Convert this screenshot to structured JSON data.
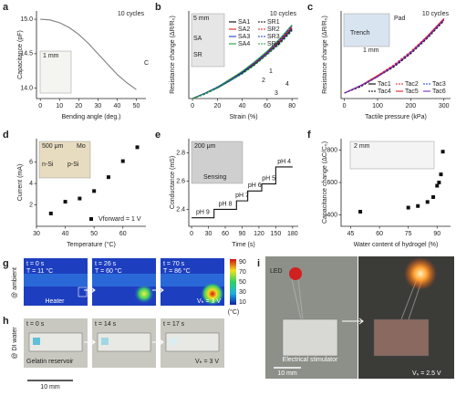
{
  "chart_data": [
    {
      "label": "a",
      "type": "line",
      "annotation": "10 cycles",
      "xlabel": "Bending angle (deg.)",
      "ylabel": "Capacitance (pF)",
      "x": [
        0,
        5,
        10,
        15,
        20,
        25,
        30,
        35,
        40,
        45,
        50
      ],
      "series": [
        {
          "color": "#7f7f7f",
          "values": [
            15.0,
            14.99,
            14.95,
            14.88,
            14.78,
            14.65,
            14.5,
            14.35,
            14.2,
            14.08,
            13.98
          ]
        }
      ],
      "xlim": [
        -2,
        55
      ],
      "ylim": [
        13.85,
        15.12
      ],
      "xticks": [
        0,
        10,
        20,
        30,
        40,
        50
      ],
      "yticks": [
        {
          "value": 14,
          "label": "14.0"
        },
        {
          "value": 14.5,
          "label": "14.5"
        },
        {
          "value": 15,
          "label": "15.0"
        }
      ],
      "insets": [
        "1 mm",
        "C"
      ]
    },
    {
      "label": "b",
      "type": "line",
      "annotation": "10 cycles",
      "xlabel": "Strain (%)",
      "ylabel": "Resistance change (ΔR/R₀)",
      "x": [
        0,
        10,
        20,
        30,
        40,
        50,
        60,
        70,
        80
      ],
      "legend": "upper-center",
      "series": [
        {
          "name": "SA1",
          "color": "#000000",
          "linestyle": "solid",
          "values": [
            0,
            0.06,
            0.13,
            0.21,
            0.3,
            0.4,
            0.52,
            0.65,
            0.8
          ]
        },
        {
          "name": "SA2",
          "color": "#e02020",
          "linestyle": "solid",
          "values": [
            0,
            0.06,
            0.13,
            0.21,
            0.31,
            0.41,
            0.53,
            0.66,
            0.82
          ]
        },
        {
          "name": "SA3",
          "color": "#2040d0",
          "linestyle": "solid",
          "values": [
            0,
            0.06,
            0.12,
            0.2,
            0.29,
            0.39,
            0.51,
            0.64,
            0.79
          ]
        },
        {
          "name": "SA4",
          "color": "#20a040",
          "linestyle": "solid",
          "values": [
            0,
            0.06,
            0.13,
            0.22,
            0.31,
            0.42,
            0.54,
            0.68,
            0.84
          ]
        },
        {
          "name": "SR1",
          "color": "#000000",
          "linestyle": "dashed",
          "values": [
            0,
            0.05,
            0.12,
            0.2,
            0.29,
            0.39,
            0.5,
            0.63,
            0.78
          ]
        },
        {
          "name": "SR2",
          "color": "#e02020",
          "linestyle": "dashed",
          "values": [
            0,
            0.06,
            0.12,
            0.21,
            0.3,
            0.4,
            0.52,
            0.65,
            0.81
          ]
        },
        {
          "name": "SR3",
          "color": "#2040d0",
          "linestyle": "dashed",
          "values": [
            0,
            0.06,
            0.13,
            0.21,
            0.3,
            0.41,
            0.53,
            0.67,
            0.83
          ]
        },
        {
          "name": "SR4",
          "color": "#20a040",
          "linestyle": "dashed",
          "values": [
            0,
            0.05,
            0.12,
            0.2,
            0.28,
            0.38,
            0.5,
            0.62,
            0.77
          ]
        }
      ],
      "xlim": [
        -3,
        85
      ],
      "ylim": [
        0,
        1.0
      ],
      "xticks": [
        0,
        20,
        40,
        60,
        80
      ],
      "insets": [
        "5 mm",
        "SA",
        "SR",
        "1",
        "2",
        "3",
        "4"
      ]
    },
    {
      "label": "c",
      "type": "line",
      "annotation": "10 cycles",
      "xlabel": "Tactile pressure (kPa)",
      "ylabel": "Resistance change (ΔR/R₀)",
      "x": [
        0,
        50,
        100,
        150,
        200,
        250,
        300
      ],
      "legend": "lower-right",
      "series": [
        {
          "name": "Tac1",
          "color": "#000000",
          "linestyle": "solid",
          "values": [
            0.05,
            0.12,
            0.2,
            0.3,
            0.42,
            0.56,
            0.72
          ]
        },
        {
          "name": "Tac2",
          "color": "#e02020",
          "linestyle": "dashed",
          "values": [
            0.05,
            0.12,
            0.21,
            0.31,
            0.43,
            0.57,
            0.73
          ]
        },
        {
          "name": "Tac3",
          "color": "#2040d0",
          "linestyle": "dashed",
          "values": [
            0.05,
            0.12,
            0.2,
            0.3,
            0.42,
            0.56,
            0.72
          ]
        },
        {
          "name": "Tac4",
          "color": "#000000",
          "linestyle": "dashed",
          "values": [
            0.05,
            0.11,
            0.2,
            0.29,
            0.41,
            0.55,
            0.71
          ]
        },
        {
          "name": "Tac5",
          "color": "#e02020",
          "linestyle": "solid",
          "values": [
            0.05,
            0.12,
            0.21,
            0.3,
            0.42,
            0.57,
            0.73
          ]
        },
        {
          "name": "Tac6",
          "color": "#7a2cc0",
          "linestyle": "solid",
          "values": [
            0.05,
            0.12,
            0.2,
            0.3,
            0.42,
            0.56,
            0.72
          ]
        }
      ],
      "xlim": [
        -10,
        320
      ],
      "ylim": [
        0,
        0.8
      ],
      "xticks": [
        0,
        100,
        200,
        300
      ],
      "insets": [
        "Pad",
        "Trench",
        "1 mm"
      ]
    },
    {
      "label": "d",
      "type": "scatter",
      "xlabel": "Temperature (°C)",
      "ylabel": "Current (mA)",
      "x": [
        35,
        40,
        45,
        50,
        55,
        60,
        65
      ],
      "legend": "lower-right",
      "series": [
        {
          "name": "Vforward = 1 V",
          "color": "#111111",
          "values": [
            1.2,
            2.3,
            2.6,
            3.3,
            4.6,
            6.1,
            7.4
          ]
        }
      ],
      "xlim": [
        30,
        68
      ],
      "ylim": [
        0,
        8.2
      ],
      "xticks": [
        30,
        40,
        50,
        60
      ],
      "yticks": [
        2,
        4,
        6
      ],
      "insets": [
        "500 μm",
        "Mo",
        "n-Si",
        "p-Si"
      ]
    },
    {
      "label": "e",
      "type": "line",
      "xlabel": "Time (s)",
      "ylabel": "Conductance (mS)",
      "x": [
        0,
        40,
        40,
        80,
        80,
        100,
        100,
        125,
        125,
        150,
        150,
        180
      ],
      "series": [
        {
          "color": "#111111",
          "values": [
            2.34,
            2.34,
            2.4,
            2.4,
            2.46,
            2.46,
            2.53,
            2.53,
            2.58,
            2.58,
            2.7,
            2.7
          ]
        }
      ],
      "annotations": [
        "pH 9",
        "pH 8",
        "pH 7",
        "pH 6",
        "pH 5",
        "pH 4"
      ],
      "xlim": [
        -5,
        190
      ],
      "ylim": [
        2.28,
        2.9
      ],
      "xticks": [
        0,
        30,
        60,
        90,
        120,
        150,
        180
      ],
      "yticks": [
        {
          "value": 2.4,
          "label": "2.4"
        },
        {
          "value": 2.6,
          "label": "2.6"
        },
        {
          "value": 2.8,
          "label": "2.8"
        }
      ],
      "insets": [
        "200 μm",
        "Sensing"
      ]
    },
    {
      "label": "f",
      "type": "scatter",
      "xlabel": "Water content of hydrogel (%)",
      "ylabel": "Capacitance change (ΔC/C₀)",
      "x": [
        50,
        75,
        80,
        85,
        88,
        90,
        91,
        92,
        93
      ],
      "series": [
        {
          "color": "#111111",
          "values": [
            420,
            445,
            455,
            480,
            510,
            580,
            600,
            650,
            790
          ]
        }
      ],
      "xlim": [
        40,
        97
      ],
      "ylim": [
        330,
        870
      ],
      "xticks": [
        45,
        60,
        75,
        90
      ],
      "yticks": [
        400,
        600,
        800
      ],
      "insets": [
        "2 mm"
      ]
    }
  ],
  "photos": {
    "g": {
      "label": "g",
      "side": "@ ambient",
      "frames": [
        {
          "t": "t = 0 s",
          "T": "T = 11 °C"
        },
        {
          "t": "t = 26 s",
          "T": "T = 60 °C"
        },
        {
          "t": "t = 70 s",
          "T": "T = 86 °C"
        }
      ],
      "heater": "Heater",
      "voltage": "Vₕ = 3 V",
      "colorbar": [
        "90",
        "70",
        "50",
        "30",
        "10"
      ],
      "unit": "(°C)"
    },
    "h": {
      "label": "h",
      "side": "@ DI water",
      "frames": [
        "t = 0 s",
        "t = 14 s",
        "t = 17 s"
      ],
      "reservoir": "Gelatin reservoir",
      "voltage": "Vₕ = 3 V",
      "scale": "10 mm"
    },
    "i": {
      "label": "i",
      "led": "LED",
      "stimulator": "Electrical stimulator",
      "scale": "10 mm",
      "voltage": "Vₛ = 2.5 V"
    }
  }
}
